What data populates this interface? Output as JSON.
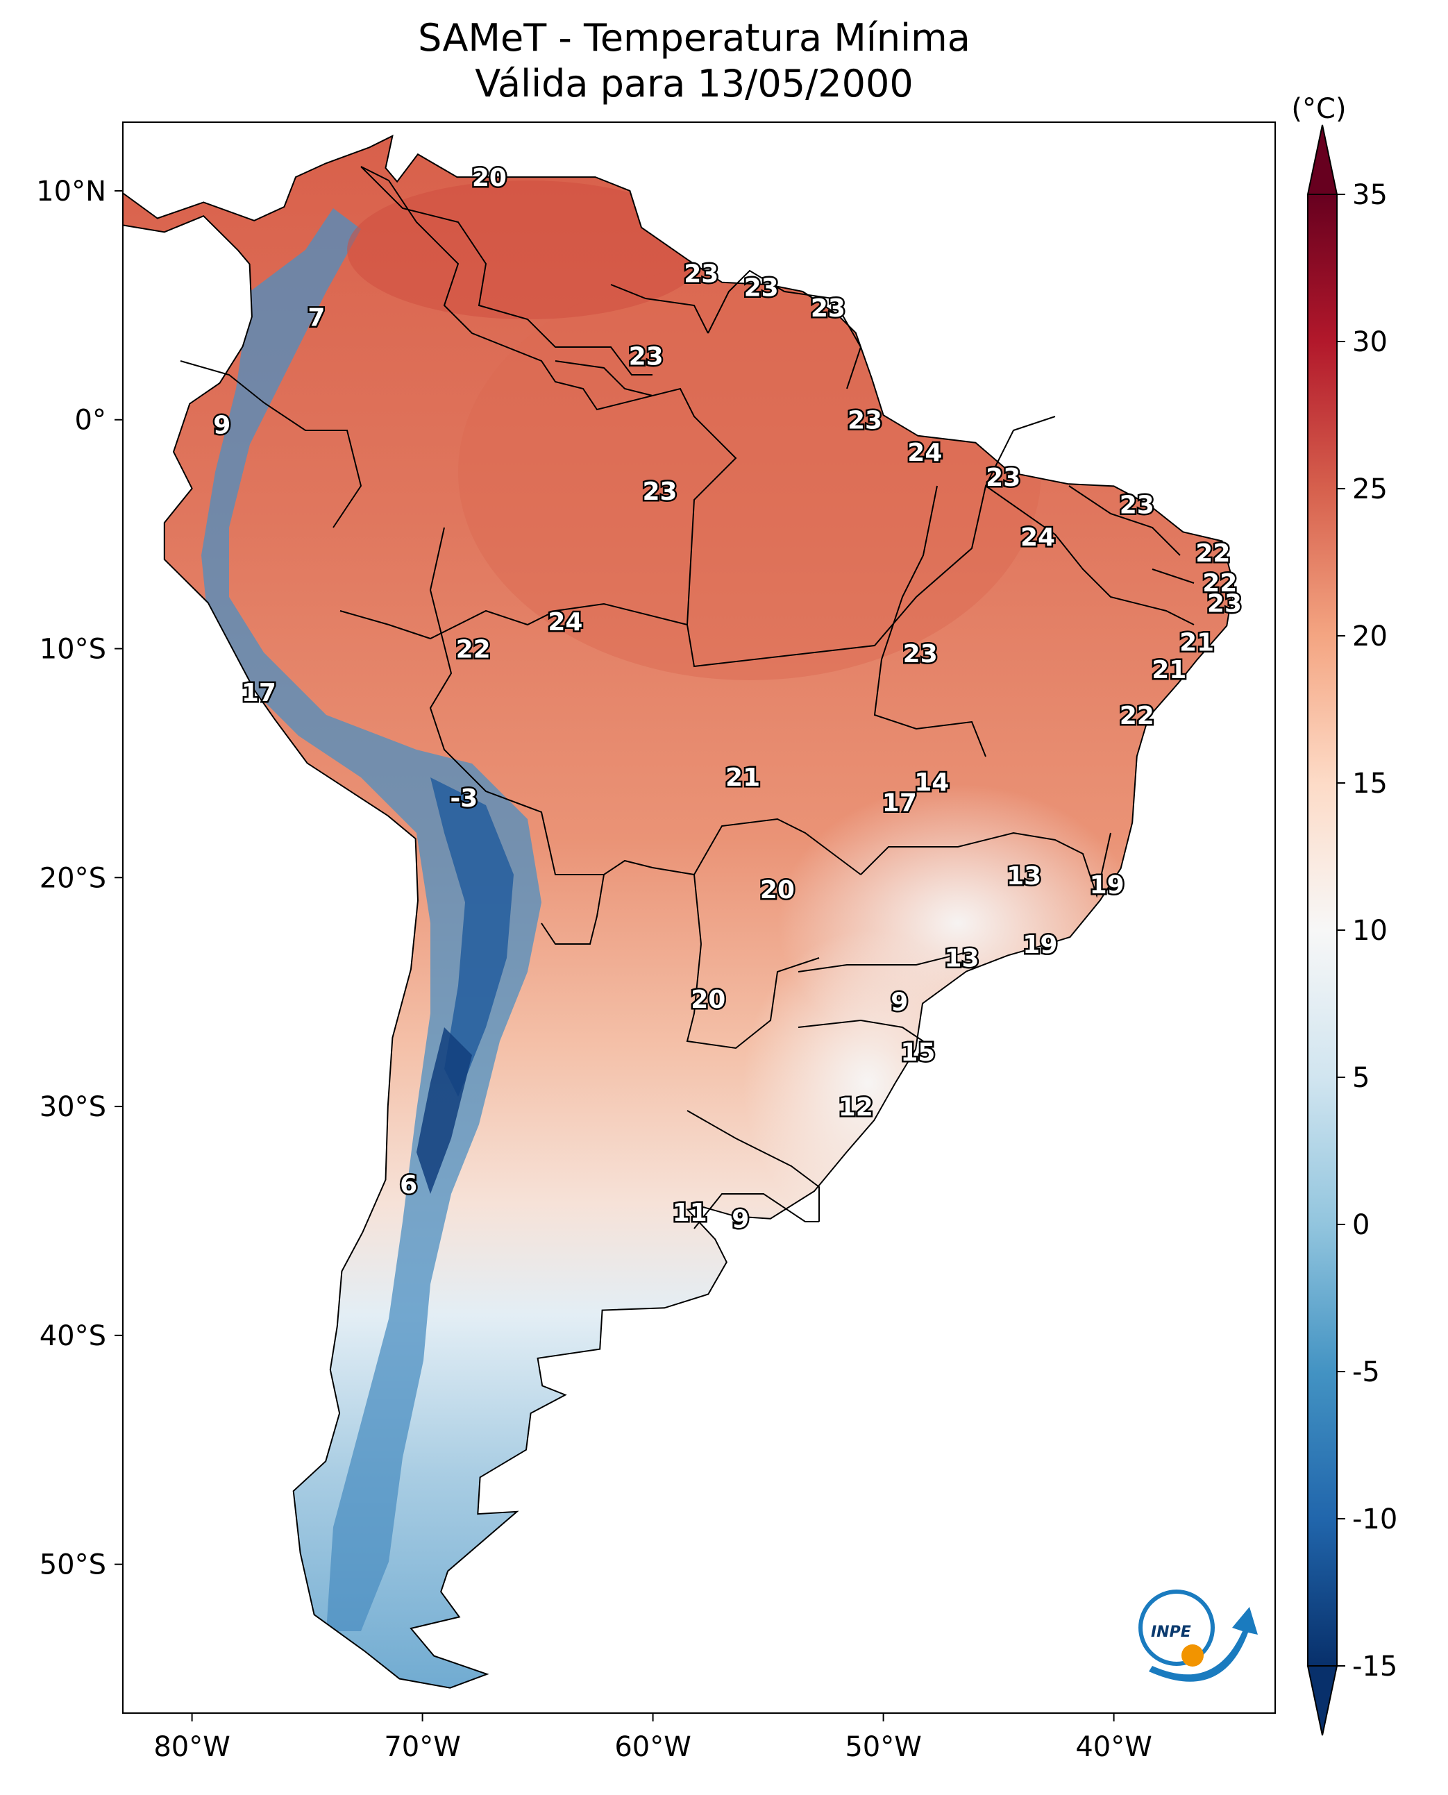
{
  "title": {
    "line1": "SAMeT - Temperatura Mínima",
    "line2": "Válida para 13/05/2000"
  },
  "map": {
    "x_ticks": [
      {
        "lon": -80,
        "label": "80°W"
      },
      {
        "lon": -70,
        "label": "70°W"
      },
      {
        "lon": -60,
        "label": "60°W"
      },
      {
        "lon": -50,
        "label": "50°W"
      },
      {
        "lon": -40,
        "label": "40°W"
      }
    ],
    "y_ticks": [
      {
        "lat": 10,
        "label": "10°N"
      },
      {
        "lat": 0,
        "label": "0°"
      },
      {
        "lat": -10,
        "label": "10°S"
      },
      {
        "lat": -20,
        "label": "20°S"
      },
      {
        "lat": -30,
        "label": "30°S"
      },
      {
        "lat": -40,
        "label": "40°S"
      },
      {
        "lat": -50,
        "label": "50°S"
      }
    ],
    "lon_range": [
      -83,
      -33
    ],
    "lat_range": [
      -56.5,
      13
    ]
  },
  "colorbar": {
    "unit": "(°C)",
    "range": [
      -15,
      35
    ],
    "ticks": [
      {
        "value": 35,
        "label": "35"
      },
      {
        "value": 30,
        "label": "30"
      },
      {
        "value": 25,
        "label": "25"
      },
      {
        "value": 20,
        "label": "20"
      },
      {
        "value": 15,
        "label": "15"
      },
      {
        "value": 10,
        "label": "10"
      },
      {
        "value": 5,
        "label": "5"
      },
      {
        "value": 0,
        "label": "0"
      },
      {
        "value": -5,
        "label": "-5"
      },
      {
        "value": -10,
        "label": "-10"
      },
      {
        "value": -15,
        "label": "-15"
      }
    ],
    "colors_low_to_high": [
      "#08306b",
      "#2166ac",
      "#4393c3",
      "#92c5de",
      "#d1e5f0",
      "#f7f7f7",
      "#fddbc7",
      "#f4a582",
      "#d6604d",
      "#b2182b",
      "#67001f"
    ]
  },
  "stations": [
    {
      "lon": -67.1,
      "lat": 10.6,
      "label": "20"
    },
    {
      "lon": -74.6,
      "lat": 4.5,
      "label": "7"
    },
    {
      "lon": -78.7,
      "lat": -0.2,
      "label": "9"
    },
    {
      "lon": -57.9,
      "lat": 6.4,
      "label": "23"
    },
    {
      "lon": -55.3,
      "lat": 5.8,
      "label": "23"
    },
    {
      "lon": -52.4,
      "lat": 4.9,
      "label": "23"
    },
    {
      "lon": -60.3,
      "lat": 2.8,
      "label": "23"
    },
    {
      "lon": -50.8,
      "lat": 0.0,
      "label": "23"
    },
    {
      "lon": -48.2,
      "lat": -1.4,
      "label": "24"
    },
    {
      "lon": -44.8,
      "lat": -2.5,
      "label": "23"
    },
    {
      "lon": -59.7,
      "lat": -3.1,
      "label": "23"
    },
    {
      "lon": -39.0,
      "lat": -3.7,
      "label": "23"
    },
    {
      "lon": -43.3,
      "lat": -5.1,
      "label": "24"
    },
    {
      "lon": -35.7,
      "lat": -5.8,
      "label": "22"
    },
    {
      "lon": -35.4,
      "lat": -7.1,
      "label": "22"
    },
    {
      "lon": -35.2,
      "lat": -8.0,
      "label": "23"
    },
    {
      "lon": -63.8,
      "lat": -8.8,
      "label": "24"
    },
    {
      "lon": -67.8,
      "lat": -10.0,
      "label": "22"
    },
    {
      "lon": -48.4,
      "lat": -10.2,
      "label": "23"
    },
    {
      "lon": -36.4,
      "lat": -9.7,
      "label": "21"
    },
    {
      "lon": -37.6,
      "lat": -10.9,
      "label": "21"
    },
    {
      "lon": -77.1,
      "lat": -11.9,
      "label": "17"
    },
    {
      "lon": -39.0,
      "lat": -12.9,
      "label": "22"
    },
    {
      "lon": -56.1,
      "lat": -15.6,
      "label": "21"
    },
    {
      "lon": -47.9,
      "lat": -15.8,
      "label": "14"
    },
    {
      "lon": -49.3,
      "lat": -16.7,
      "label": "17"
    },
    {
      "lon": -68.2,
      "lat": -16.5,
      "label": "-3"
    },
    {
      "lon": -43.9,
      "lat": -19.9,
      "label": "13"
    },
    {
      "lon": -40.3,
      "lat": -20.3,
      "label": "19"
    },
    {
      "lon": -54.6,
      "lat": -20.5,
      "label": "20"
    },
    {
      "lon": -43.2,
      "lat": -22.9,
      "label": "19"
    },
    {
      "lon": -46.6,
      "lat": -23.5,
      "label": "13"
    },
    {
      "lon": -57.6,
      "lat": -25.3,
      "label": "20"
    },
    {
      "lon": -49.3,
      "lat": -25.4,
      "label": "9"
    },
    {
      "lon": -48.5,
      "lat": -27.6,
      "label": "15"
    },
    {
      "lon": -51.2,
      "lat": -30.0,
      "label": "12"
    },
    {
      "lon": -70.6,
      "lat": -33.4,
      "label": "6"
    },
    {
      "lon": -58.4,
      "lat": -34.6,
      "label": "11"
    },
    {
      "lon": -56.2,
      "lat": -34.9,
      "label": "9"
    }
  ],
  "logo": {
    "name": "INPE",
    "text": "INPE"
  }
}
